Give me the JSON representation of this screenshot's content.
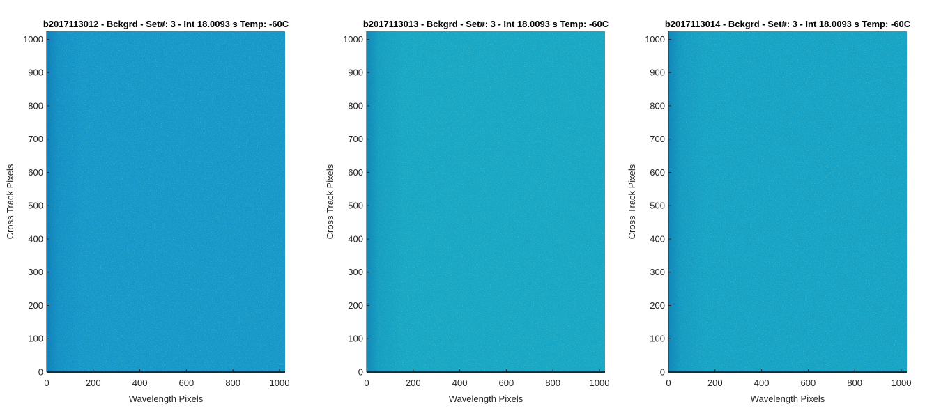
{
  "chart_data": [
    {
      "type": "heatmap",
      "title": "b2017113012 - Bckgrd - Set#: 3 - Int 18.0093 s Temp: -60C",
      "xlabel": "Wavelength Pixels",
      "ylabel": "Cross Track Pixels",
      "xlim": [
        0,
        1024
      ],
      "ylim": [
        0,
        1024
      ],
      "xticks": [
        0,
        200,
        400,
        600,
        800,
        1000
      ],
      "yticks": [
        0,
        100,
        200,
        300,
        400,
        500,
        600,
        700,
        800,
        900,
        1000
      ],
      "base_color": "#1597c8",
      "edge_color": "#0f86c0",
      "grid": false
    },
    {
      "type": "heatmap",
      "title": "b2017113013 - Bckgrd - Set#: 3 - Int 18.0093 s Temp: -60C",
      "xlabel": "Wavelength Pixels",
      "ylabel": "Cross Track Pixels",
      "xlim": [
        0,
        1024
      ],
      "ylim": [
        0,
        1024
      ],
      "xticks": [
        0,
        200,
        400,
        600,
        800,
        1000
      ],
      "yticks": [
        0,
        100,
        200,
        300,
        400,
        500,
        600,
        700,
        800,
        900,
        1000
      ],
      "base_color": "#17a6c3",
      "edge_color": "#1393c4",
      "grid": false
    },
    {
      "type": "heatmap",
      "title": "b2017113014 - Bckgrd - Set#: 3 - Int 18.0093 s Temp: -60C",
      "xlabel": "Wavelength Pixels",
      "ylabel": "Cross Track Pixels",
      "xlim": [
        0,
        1024
      ],
      "ylim": [
        0,
        1024
      ],
      "xticks": [
        0,
        200,
        400,
        600,
        800,
        1000
      ],
      "yticks": [
        0,
        100,
        200,
        300,
        400,
        500,
        600,
        700,
        800,
        900,
        1000
      ],
      "base_color": "#16a2c4",
      "edge_color": "#1290c2",
      "grid": false
    }
  ]
}
